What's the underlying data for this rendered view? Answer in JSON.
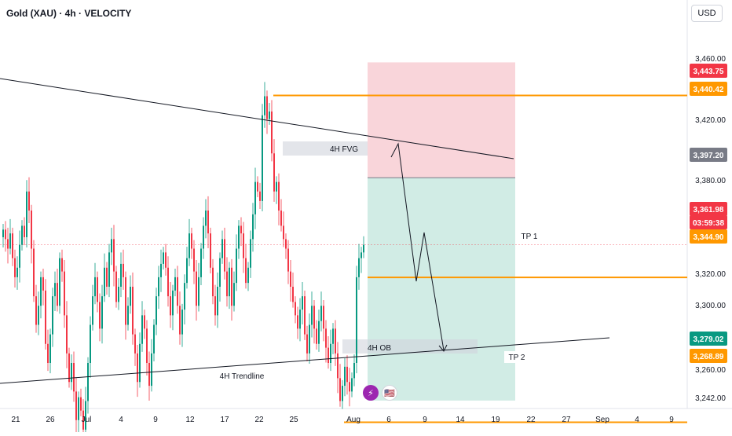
{
  "header": {
    "title": "Gold (XAU) · 4h · VELOCITY",
    "currency": "USD"
  },
  "chart_data": {
    "type": "candlestick",
    "title": "Gold (XAU) · 4h · VELOCITY",
    "currency": "USD",
    "y_ticks": [
      "3,460.00",
      "3,420.00",
      "3,380.00",
      "3,320.00",
      "3,300.00",
      "3,260.00",
      "3,242.00"
    ],
    "x_ticks": [
      "21",
      "26",
      "Jul",
      "4",
      "9",
      "12",
      "17",
      "22",
      "25",
      "Aug",
      "6",
      "9",
      "14",
      "19",
      "22",
      "27",
      "Sep",
      "4",
      "9"
    ],
    "price_tags": [
      {
        "label": "3,443.75",
        "value": 3443.75,
        "color": "#f23645"
      },
      {
        "label": "3,440.42",
        "value": 3440.42,
        "color": "#ff9800"
      },
      {
        "label": "3,397.20",
        "value": 3397.2,
        "color": "#787b86"
      },
      {
        "label": "3,361.98",
        "value": 3361.98,
        "color": "#f23645"
      },
      {
        "label": "03:59:38",
        "value": 3361.98,
        "color": "#f23645"
      },
      {
        "label": "3,344.90",
        "value": 3344.9,
        "color": "#ff9800"
      },
      {
        "label": "3,279.02",
        "value": 3279.02,
        "color": "#089981"
      },
      {
        "label": "3,268.89",
        "value": 3268.89,
        "color": "#ff9800"
      }
    ],
    "annotations": {
      "fvg_label": "4H FVG",
      "ob_label": "4H OB",
      "trendline_label": "4H Trendline",
      "tp1_label": "TP 1",
      "tp2_label": "TP 2"
    },
    "levels": {
      "stop": 3440.42,
      "stop_top": 3443.75,
      "entry": 3397.2,
      "tp1": 3344.9,
      "target": 3279.02,
      "tp2": 3268.89,
      "current": 3361.98
    },
    "candle_closes": [
      3370,
      3365,
      3360,
      3368,
      3355,
      3345,
      3350,
      3362,
      3372,
      3366,
      3390,
      3380,
      3360,
      3335,
      3320,
      3330,
      3345,
      3338,
      3310,
      3300,
      3315,
      3335,
      3342,
      3330,
      3355,
      3348,
      3325,
      3305,
      3290,
      3300,
      3285,
      3270,
      3282,
      3275,
      3265,
      3280,
      3300,
      3320,
      3335,
      3345,
      3332,
      3318,
      3335,
      3350,
      3340,
      3358,
      3365,
      3348,
      3332,
      3340,
      3352,
      3345,
      3320,
      3330,
      3340,
      3315,
      3305,
      3290,
      3310,
      3325,
      3318,
      3300,
      3288,
      3305,
      3320,
      3335,
      3345,
      3352,
      3358,
      3350,
      3335,
      3325,
      3338,
      3345,
      3330,
      3315,
      3328,
      3342,
      3355,
      3368,
      3360,
      3348,
      3330,
      3345,
      3360,
      3372,
      3380,
      3368,
      3350,
      3335,
      3325,
      3340,
      3355,
      3365,
      3348,
      3335,
      3350,
      3330,
      3342,
      3360,
      3372,
      3368,
      3355,
      3342,
      3350,
      3365,
      3378,
      3395,
      3390,
      3385,
      3430,
      3440,
      3428,
      3432,
      3410,
      3390,
      3395,
      3380,
      3372,
      3365,
      3360,
      3348,
      3340,
      3332,
      3325,
      3318,
      3328,
      3335,
      3315,
      3305,
      3320,
      3330,
      3318,
      3310,
      3322,
      3330,
      3318,
      3308,
      3300,
      3310,
      3318,
      3305,
      3292,
      3280,
      3288,
      3298,
      3290,
      3285,
      3292,
      3300,
      3345,
      3355,
      3358,
      3362
    ]
  }
}
